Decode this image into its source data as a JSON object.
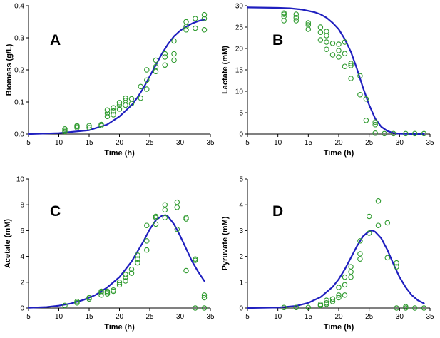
{
  "colors": {
    "points": "#2e9a2e",
    "model": "#1f1fbf",
    "axis": "#000000"
  },
  "chart_data": [
    {
      "type": "scatter",
      "label": "A",
      "xlabel": "Time (h)",
      "ylabel": "Biomass (g/L)",
      "xlim": [
        5,
        35
      ],
      "ylim": [
        0,
        0.4
      ],
      "xticks": [
        "5",
        "10",
        "15",
        "20",
        "25",
        "30",
        "35"
      ],
      "yticks": [
        "0.0",
        "0.1",
        "0.2",
        "0.3",
        "0.4"
      ],
      "points": [
        [
          11,
          0.008
        ],
        [
          11,
          0.012
        ],
        [
          11,
          0.016
        ],
        [
          13,
          0.02
        ],
        [
          13,
          0.024
        ],
        [
          13,
          0.026
        ],
        [
          15,
          0.02
        ],
        [
          15,
          0.026
        ],
        [
          17,
          0.026
        ],
        [
          17,
          0.03
        ],
        [
          18,
          0.055
        ],
        [
          18,
          0.065
        ],
        [
          18,
          0.075
        ],
        [
          19,
          0.06
        ],
        [
          19,
          0.072
        ],
        [
          19,
          0.082
        ],
        [
          20,
          0.078
        ],
        [
          20,
          0.09
        ],
        [
          20,
          0.098
        ],
        [
          21,
          0.09
        ],
        [
          21,
          0.105
        ],
        [
          21,
          0.112
        ],
        [
          22,
          0.095
        ],
        [
          22,
          0.11
        ],
        [
          23.5,
          0.112
        ],
        [
          23.5,
          0.148
        ],
        [
          24.5,
          0.14
        ],
        [
          24.5,
          0.168
        ],
        [
          24.5,
          0.2
        ],
        [
          26,
          0.195
        ],
        [
          26,
          0.21
        ],
        [
          26,
          0.23
        ],
        [
          27.5,
          0.215
        ],
        [
          27.5,
          0.24
        ],
        [
          27.5,
          0.25
        ],
        [
          29,
          0.23
        ],
        [
          29,
          0.25
        ],
        [
          29,
          0.29
        ],
        [
          31,
          0.325
        ],
        [
          31,
          0.335
        ],
        [
          31,
          0.35
        ],
        [
          32.5,
          0.33
        ],
        [
          32.5,
          0.36
        ],
        [
          34,
          0.325
        ],
        [
          34,
          0.36
        ],
        [
          34,
          0.372
        ]
      ],
      "curve": [
        [
          5,
          0.0
        ],
        [
          10,
          0.003
        ],
        [
          15,
          0.012
        ],
        [
          18,
          0.03
        ],
        [
          20,
          0.055
        ],
        [
          22,
          0.09
        ],
        [
          23,
          0.115
        ],
        [
          24,
          0.145
        ],
        [
          25,
          0.18
        ],
        [
          26,
          0.215
        ],
        [
          27,
          0.25
        ],
        [
          28,
          0.28
        ],
        [
          29,
          0.305
        ],
        [
          30,
          0.322
        ],
        [
          31,
          0.335
        ],
        [
          32,
          0.345
        ],
        [
          33,
          0.352
        ],
        [
          34,
          0.357
        ]
      ]
    },
    {
      "type": "scatter",
      "label": "B",
      "xlabel": "Time (h)",
      "ylabel": "Lactate (mM)",
      "xlim": [
        5,
        35
      ],
      "ylim": [
        0,
        30
      ],
      "xticks": [
        "5",
        "10",
        "15",
        "20",
        "25",
        "30",
        "35"
      ],
      "yticks": [
        "0",
        "5",
        "10",
        "15",
        "20",
        "25",
        "30"
      ],
      "points": [
        [
          11,
          26.5
        ],
        [
          11,
          27.5
        ],
        [
          11,
          28
        ],
        [
          11,
          28.3
        ],
        [
          13,
          26.5
        ],
        [
          13,
          27.2
        ],
        [
          13,
          28
        ],
        [
          15,
          24.5
        ],
        [
          15,
          25.5
        ],
        [
          15,
          26
        ],
        [
          17,
          22
        ],
        [
          17,
          23.8
        ],
        [
          17,
          25
        ],
        [
          18,
          19.8
        ],
        [
          18,
          21.5
        ],
        [
          18,
          23
        ],
        [
          18,
          24
        ],
        [
          19,
          18.5
        ],
        [
          19,
          21.2
        ],
        [
          20,
          18
        ],
        [
          20,
          19.5
        ],
        [
          20,
          21
        ],
        [
          21,
          15.8
        ],
        [
          21,
          18.8
        ],
        [
          21,
          21.5
        ],
        [
          22,
          13
        ],
        [
          22,
          16
        ],
        [
          22,
          16.5
        ],
        [
          23.5,
          9.2
        ],
        [
          23.5,
          13.6
        ],
        [
          24.5,
          3.2
        ],
        [
          24.5,
          8.2
        ],
        [
          26,
          0.2
        ],
        [
          26,
          2.2
        ],
        [
          26,
          2.8
        ],
        [
          27.5,
          0.1
        ],
        [
          29,
          0.1
        ],
        [
          31,
          0.1
        ],
        [
          32.5,
          0.1
        ],
        [
          34,
          0.1
        ]
      ],
      "curve": [
        [
          5,
          29.6
        ],
        [
          10,
          29.5
        ],
        [
          12,
          29.4
        ],
        [
          14,
          29.1
        ],
        [
          16,
          28.5
        ],
        [
          17,
          28
        ],
        [
          18,
          27.2
        ],
        [
          19,
          26
        ],
        [
          20,
          24.5
        ],
        [
          21,
          22.2
        ],
        [
          22,
          19.2
        ],
        [
          23,
          15.2
        ],
        [
          24,
          10.8
        ],
        [
          25,
          6.8
        ],
        [
          26,
          3.6
        ],
        [
          27,
          1.7
        ],
        [
          28,
          0.7
        ],
        [
          29,
          0.25
        ],
        [
          30,
          0.08
        ],
        [
          32,
          0.01
        ],
        [
          34,
          0.0
        ]
      ]
    },
    {
      "type": "scatter",
      "label": "C",
      "xlabel": "Time (h)",
      "ylabel": "Acetate (mM)",
      "xlim": [
        5,
        35
      ],
      "ylim": [
        0,
        10
      ],
      "xticks": [
        "5",
        "10",
        "15",
        "20",
        "25",
        "30",
        "35"
      ],
      "yticks": [
        "0",
        "2",
        "4",
        "6",
        "8",
        "10"
      ],
      "points": [
        [
          11,
          0.2
        ],
        [
          13,
          0.4
        ],
        [
          13,
          0.5
        ],
        [
          15,
          0.7
        ],
        [
          15,
          0.8
        ],
        [
          17,
          1.0
        ],
        [
          17,
          1.2
        ],
        [
          17,
          1.3
        ],
        [
          18,
          1.1
        ],
        [
          18,
          1.2
        ],
        [
          18,
          1.3
        ],
        [
          19,
          1.3
        ],
        [
          19,
          1.4
        ],
        [
          20,
          1.8
        ],
        [
          20,
          2.0
        ],
        [
          21,
          2.1
        ],
        [
          21,
          2.4
        ],
        [
          21,
          2.6
        ],
        [
          22,
          2.7
        ],
        [
          22,
          3.0
        ],
        [
          23,
          3.5
        ],
        [
          23,
          3.8
        ],
        [
          23,
          4.1
        ],
        [
          24.5,
          4.5
        ],
        [
          24.5,
          5.2
        ],
        [
          24.5,
          6.4
        ],
        [
          26,
          6.5
        ],
        [
          26,
          7.0
        ],
        [
          26,
          7.1
        ],
        [
          27.5,
          7.0
        ],
        [
          27.5,
          7.6
        ],
        [
          27.5,
          8.0
        ],
        [
          29.5,
          6.1
        ],
        [
          29.5,
          7.8
        ],
        [
          29.5,
          8.2
        ],
        [
          31,
          2.9
        ],
        [
          31,
          6.9
        ],
        [
          31,
          7.0
        ],
        [
          32.5,
          0.0
        ],
        [
          32.5,
          3.7
        ],
        [
          32.5,
          3.8
        ],
        [
          34,
          0.0
        ],
        [
          34,
          0.8
        ],
        [
          34,
          1.0
        ]
      ],
      "curve": [
        [
          5,
          0.02
        ],
        [
          8,
          0.08
        ],
        [
          10,
          0.18
        ],
        [
          12,
          0.35
        ],
        [
          14,
          0.62
        ],
        [
          16,
          1.0
        ],
        [
          18,
          1.6
        ],
        [
          20,
          2.4
        ],
        [
          22,
          3.6
        ],
        [
          24,
          5.2
        ],
        [
          25,
          6.1
        ],
        [
          26,
          6.8
        ],
        [
          27,
          7.15
        ],
        [
          27.6,
          7.2
        ],
        [
          28,
          7.1
        ],
        [
          29,
          6.5
        ],
        [
          30,
          5.6
        ],
        [
          31,
          4.6
        ],
        [
          32,
          3.6
        ],
        [
          33,
          2.8
        ],
        [
          34,
          2.1
        ]
      ]
    },
    {
      "type": "scatter",
      "label": "D",
      "xlabel": "Time (h)",
      "ylabel": "Pyruvate (mM)",
      "xlim": [
        5,
        35
      ],
      "ylim": [
        0,
        5
      ],
      "xticks": [
        "5",
        "10",
        "15",
        "20",
        "25",
        "30",
        "35"
      ],
      "yticks": [
        "0",
        "1",
        "2",
        "3",
        "4",
        "5"
      ],
      "points": [
        [
          11,
          0.02
        ],
        [
          13,
          0.02
        ],
        [
          15,
          0.02
        ],
        [
          17,
          0.1
        ],
        [
          17,
          0.15
        ],
        [
          18,
          0.15
        ],
        [
          18,
          0.2
        ],
        [
          18,
          0.3
        ],
        [
          19,
          0.25
        ],
        [
          19,
          0.35
        ],
        [
          20,
          0.4
        ],
        [
          20,
          0.5
        ],
        [
          20,
          0.8
        ],
        [
          21,
          0.5
        ],
        [
          21,
          0.9
        ],
        [
          21,
          1.2
        ],
        [
          22,
          1.2
        ],
        [
          22,
          1.4
        ],
        [
          22,
          1.6
        ],
        [
          23.5,
          1.9
        ],
        [
          23.5,
          2.1
        ],
        [
          23.5,
          2.6
        ],
        [
          25,
          2.9
        ],
        [
          25,
          3.55
        ],
        [
          26.5,
          3.2
        ],
        [
          26.5,
          4.15
        ],
        [
          28,
          1.95
        ],
        [
          28,
          3.3
        ],
        [
          29.5,
          1.6
        ],
        [
          29.5,
          1.75
        ],
        [
          29.5,
          0.0
        ],
        [
          31,
          0.0
        ],
        [
          31,
          0.05
        ],
        [
          32.5,
          0.0
        ],
        [
          34,
          0.0
        ]
      ],
      "curve": [
        [
          5,
          0.0
        ],
        [
          10,
          0.02
        ],
        [
          13,
          0.08
        ],
        [
          15,
          0.2
        ],
        [
          17,
          0.42
        ],
        [
          19,
          0.82
        ],
        [
          20,
          1.12
        ],
        [
          21,
          1.5
        ],
        [
          22,
          1.95
        ],
        [
          23,
          2.4
        ],
        [
          24,
          2.78
        ],
        [
          25,
          2.98
        ],
        [
          25.6,
          3.0
        ],
        [
          26,
          2.95
        ],
        [
          27,
          2.7
        ],
        [
          28,
          2.25
        ],
        [
          29,
          1.7
        ],
        [
          30,
          1.2
        ],
        [
          31,
          0.8
        ],
        [
          32,
          0.5
        ],
        [
          33,
          0.3
        ],
        [
          34,
          0.18
        ]
      ]
    }
  ]
}
